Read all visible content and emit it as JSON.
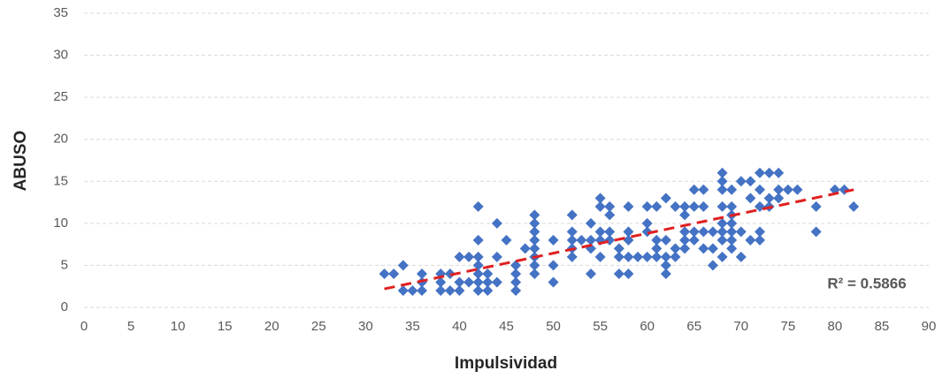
{
  "chart_data": {
    "type": "scatter",
    "x_label": "Impulsividad",
    "y_label": "ABUSO",
    "series": [
      {
        "name": "ABUSO",
        "color": "#4472c4",
        "x": [
          32,
          33,
          34,
          34,
          35,
          36,
          36,
          36,
          38,
          38,
          38,
          39,
          39,
          40,
          40,
          40,
          41,
          41,
          42,
          42,
          42,
          42,
          42,
          42,
          42,
          43,
          43,
          43,
          44,
          44,
          44,
          45,
          46,
          46,
          46,
          46,
          47,
          48,
          48,
          48,
          48,
          48,
          48,
          48,
          48,
          50,
          50,
          50,
          52,
          52,
          52,
          52,
          52,
          53,
          54,
          54,
          54,
          54,
          55,
          55,
          55,
          55,
          55,
          56,
          56,
          56,
          56,
          57,
          57,
          57,
          58,
          58,
          58,
          58,
          58,
          59,
          60,
          60,
          60,
          60,
          61,
          61,
          61,
          61,
          62,
          62,
          62,
          62,
          62,
          63,
          63,
          63,
          64,
          64,
          64,
          64,
          64,
          65,
          65,
          65,
          65,
          66,
          66,
          66,
          66,
          67,
          67,
          67,
          68,
          68,
          68,
          68,
          68,
          68,
          68,
          68,
          69,
          69,
          69,
          69,
          69,
          69,
          69,
          70,
          70,
          70,
          71,
          71,
          71,
          72,
          72,
          72,
          72,
          72,
          73,
          73,
          73,
          74,
          74,
          74,
          75,
          76,
          78,
          78,
          80,
          81,
          82
        ],
        "values": [
          4,
          4,
          5,
          2,
          2,
          4,
          3,
          2,
          4,
          3,
          2,
          4,
          2,
          3,
          2,
          6,
          6,
          3,
          12,
          8,
          6,
          5,
          4,
          3,
          2,
          4,
          3,
          2,
          10,
          6,
          3,
          8,
          5,
          4,
          3,
          2,
          7,
          11,
          10,
          9,
          8,
          7,
          6,
          5,
          4,
          8,
          5,
          3,
          11,
          9,
          8,
          7,
          6,
          8,
          10,
          8,
          7,
          4,
          13,
          12,
          9,
          8,
          6,
          12,
          11,
          9,
          8,
          7,
          6,
          4,
          12,
          9,
          8,
          6,
          4,
          6,
          12,
          10,
          9,
          6,
          12,
          8,
          7,
          6,
          13,
          8,
          6,
          5,
          4,
          12,
          7,
          6,
          12,
          11,
          9,
          8,
          7,
          14,
          12,
          9,
          8,
          14,
          12,
          9,
          7,
          9,
          7,
          5,
          16,
          15,
          14,
          12,
          10,
          9,
          8,
          6,
          14,
          12,
          11,
          10,
          9,
          8,
          7,
          15,
          9,
          6,
          15,
          13,
          8,
          16,
          14,
          12,
          9,
          8,
          16,
          13,
          12,
          16,
          14,
          13,
          14,
          14,
          12,
          9,
          14,
          14,
          12
        ]
      }
    ],
    "trendline": {
      "x": [
        32,
        82
      ],
      "values": [
        2.2,
        14
      ],
      "color": "#e02020"
    },
    "annotation": "R² = 0.5866",
    "xlim": [
      0,
      90
    ],
    "xticks": [
      0,
      5,
      10,
      15,
      20,
      25,
      30,
      35,
      40,
      45,
      50,
      55,
      60,
      65,
      70,
      75,
      80,
      85,
      90
    ],
    "ylim": [
      0,
      35
    ],
    "yticks": [
      0,
      5,
      10,
      15,
      20,
      25,
      30,
      35
    ],
    "grid": true
  }
}
